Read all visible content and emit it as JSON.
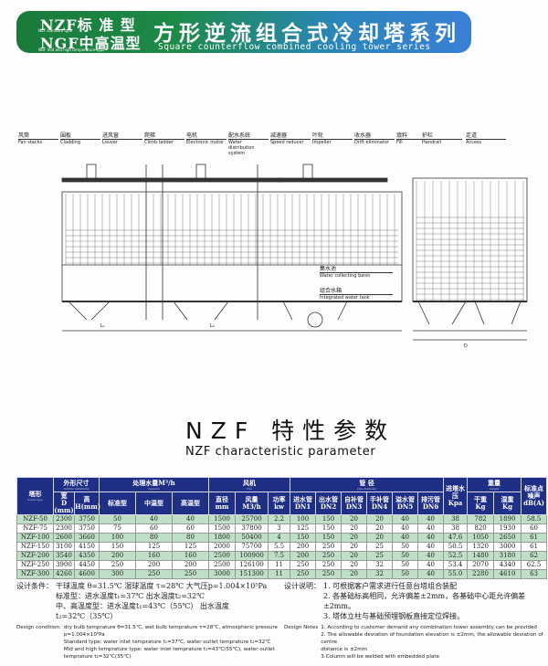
{
  "banner": {
    "line1": "NZF标 准 型",
    "line1_en": "NZF standard type",
    "line2": "NGF中高温型",
    "line2_en": "NGF mid and high temperature type",
    "title": "方形逆流组合式冷却塔系列",
    "subtitle": "Square counterflow combined cooling tower series",
    "gradient_colors": [
      "#1a7a3a",
      "#3a7fd6"
    ]
  },
  "drawing": {
    "labels": [
      {
        "cn": "风筒",
        "en": "Fan stacks"
      },
      {
        "cn": "围板",
        "en": "Cladding"
      },
      {
        "cn": "进风窗",
        "en": "Louver"
      },
      {
        "cn": "爬梯",
        "en": "Climb ladder"
      },
      {
        "cn": "电机",
        "en": "Electronic motor"
      },
      {
        "cn": "配水系统",
        "en": "Water distribution system"
      },
      {
        "cn": "减速器",
        "en": "Speed reducer"
      },
      {
        "cn": "叶轮",
        "en": "Impeller"
      },
      {
        "cn": "收水器",
        "en": "Drift eliminator"
      },
      {
        "cn": "填料",
        "en": "Fill"
      },
      {
        "cn": "护栏",
        "en": "Handrail"
      },
      {
        "cn": "走道",
        "en": "Access"
      },
      {
        "cn": "集水池",
        "en": "Water collecting basin"
      },
      {
        "cn": "组合水箱",
        "en": "Integrated water tank"
      }
    ],
    "dims": {
      "l1": "L₁",
      "l2": "L₂",
      "d": "D"
    }
  },
  "title": "NZF 特性参数",
  "subtitle": "NZF characteristic parameter",
  "table": {
    "header": {
      "model": "塔形",
      "model_en": "Tower type",
      "dim": "外形尺寸",
      "dim_en": "Outline dimension",
      "width": "宽",
      "width_unit": "D (mm)",
      "height": "高",
      "height_unit": "H(mm)",
      "flow": "处理水量M³/h",
      "flow_en": "Capacity",
      "std": "标准型",
      "mid": "中温型",
      "high": "高温型",
      "fan": "风机",
      "fan_en": "Fan",
      "dia": "直径",
      "dia_unit": "mm",
      "air": "风量",
      "air_unit": "M3/h",
      "power": "功率",
      "power_unit": "kw",
      "pipe": "管    径",
      "pipe_en": "pipe diameter",
      "dn1": "进水管",
      "dn1_u": "DN1",
      "dn2": "出水管",
      "dn2_u": "DN2",
      "dn3": "自补管",
      "dn3_u": "DN3",
      "dn4": "手补管",
      "dn4_u": "DN4",
      "dn5": "溢水管",
      "dn5_u": "DN5",
      "dn6": "排污管",
      "dn6_u": "DN6",
      "press": "进塔水压",
      "press_unit": "Kpa",
      "weight": "重量",
      "weight_en": "weight",
      "dry": "干重",
      "dry_unit": "Kg",
      "wet": "湿重",
      "wet_unit": "Kg",
      "noise": "标准点噪声dB(A)"
    },
    "rows": [
      [
        "NZF-50",
        "2300",
        "3750",
        "50",
        "40",
        "40",
        "1500",
        "25700",
        "2.2",
        "100",
        "150",
        "20",
        "20",
        "40",
        "40",
        "38",
        "782",
        "1890",
        "58.5"
      ],
      [
        "NZF-75",
        "2300",
        "3750",
        "75",
        "60",
        "60",
        "1500",
        "37800",
        "3",
        "125",
        "150",
        "20",
        "20",
        "40",
        "40",
        "38",
        "820",
        "1930",
        "60"
      ],
      [
        "NZF-100",
        "2600",
        "3660",
        "100",
        "80",
        "80",
        "1800",
        "50400",
        "4",
        "150",
        "150",
        "20",
        "20",
        "40",
        "40",
        "47.6",
        "1050",
        "2650",
        "61"
      ],
      [
        "NZF-150",
        "3100",
        "4150",
        "150",
        "125",
        "125",
        "2000",
        "75700",
        "5.5",
        "200",
        "250",
        "20",
        "25",
        "50",
        "40",
        "50.5",
        "1320",
        "3000",
        "61"
      ],
      [
        "NZF-200",
        "3540",
        "4350",
        "200",
        "160",
        "160",
        "2500",
        "100900",
        "7.5",
        "200",
        "250",
        "20",
        "25",
        "50",
        "40",
        "52.5",
        "1480",
        "3180",
        "62"
      ],
      [
        "NZF-250",
        "3900",
        "4450",
        "250",
        "200",
        "200",
        "2500",
        "126100",
        "11",
        "250",
        "250",
        "20",
        "32",
        "50",
        "40",
        "53.4",
        "2070",
        "4340",
        "62.5"
      ],
      [
        "NZF-300",
        "4260",
        "4600",
        "300",
        "250",
        "250",
        "3000",
        "151300",
        "11",
        "250",
        "250",
        "20",
        "32",
        "50",
        "40",
        "55.0",
        "2280",
        "4610",
        "63"
      ]
    ],
    "row_colors": {
      "green": "#bfe0c6",
      "header": "#1f2f86"
    }
  },
  "design_conditions": {
    "label": "设计条件：",
    "line1": "干球温度 θ=31.5℃   湿球温度 τ=28℃   大气压p=1.004×10⁵Pa",
    "line2": "标准型：进水温度t₁=37℃   出水温度t₂=32℃",
    "line3": "中、高温度型：进水温度t₁=43℃（55℃）  出水温度t₂=32℃（35℃）",
    "en_label": "Design condition:",
    "en1": "dry bulb temprature  θ=31.5℃, wet bulb temprature  τ=28℃, atmospheric pressure",
    "en2": "p=1.004×10⁵Pa",
    "en3": "Standard type: water inlet temprature  t₁=37℃,  water outlet temprature  t₂=32℃",
    "en4": "Mid and high temprature type: water inlet temprature  t₁=43℃(55℃), water outlet",
    "en5": "temprature  t₂=32℃(35℃)"
  },
  "design_notes": {
    "label": "设计说明：",
    "n1": "1. 可根据客户需求进行任意台塔组合装配",
    "n2": "2. 各基础标高相同，允许偏差±2mm，各基础中心距允许偏差±2mm。",
    "n3": "3. 塔体立柱与基础预埋钢板直接定位焊接。",
    "en_label": "Design Notes",
    "en1": "1. According to customer demand any combination tower assembly can be provided",
    "en2": "2. The allowable deviation of foundation elevation is ±2mm,  the allowable deviation of centre",
    "en3": "distance is ±2mm",
    "en4": "3.Column will be welded with embedded plate"
  }
}
